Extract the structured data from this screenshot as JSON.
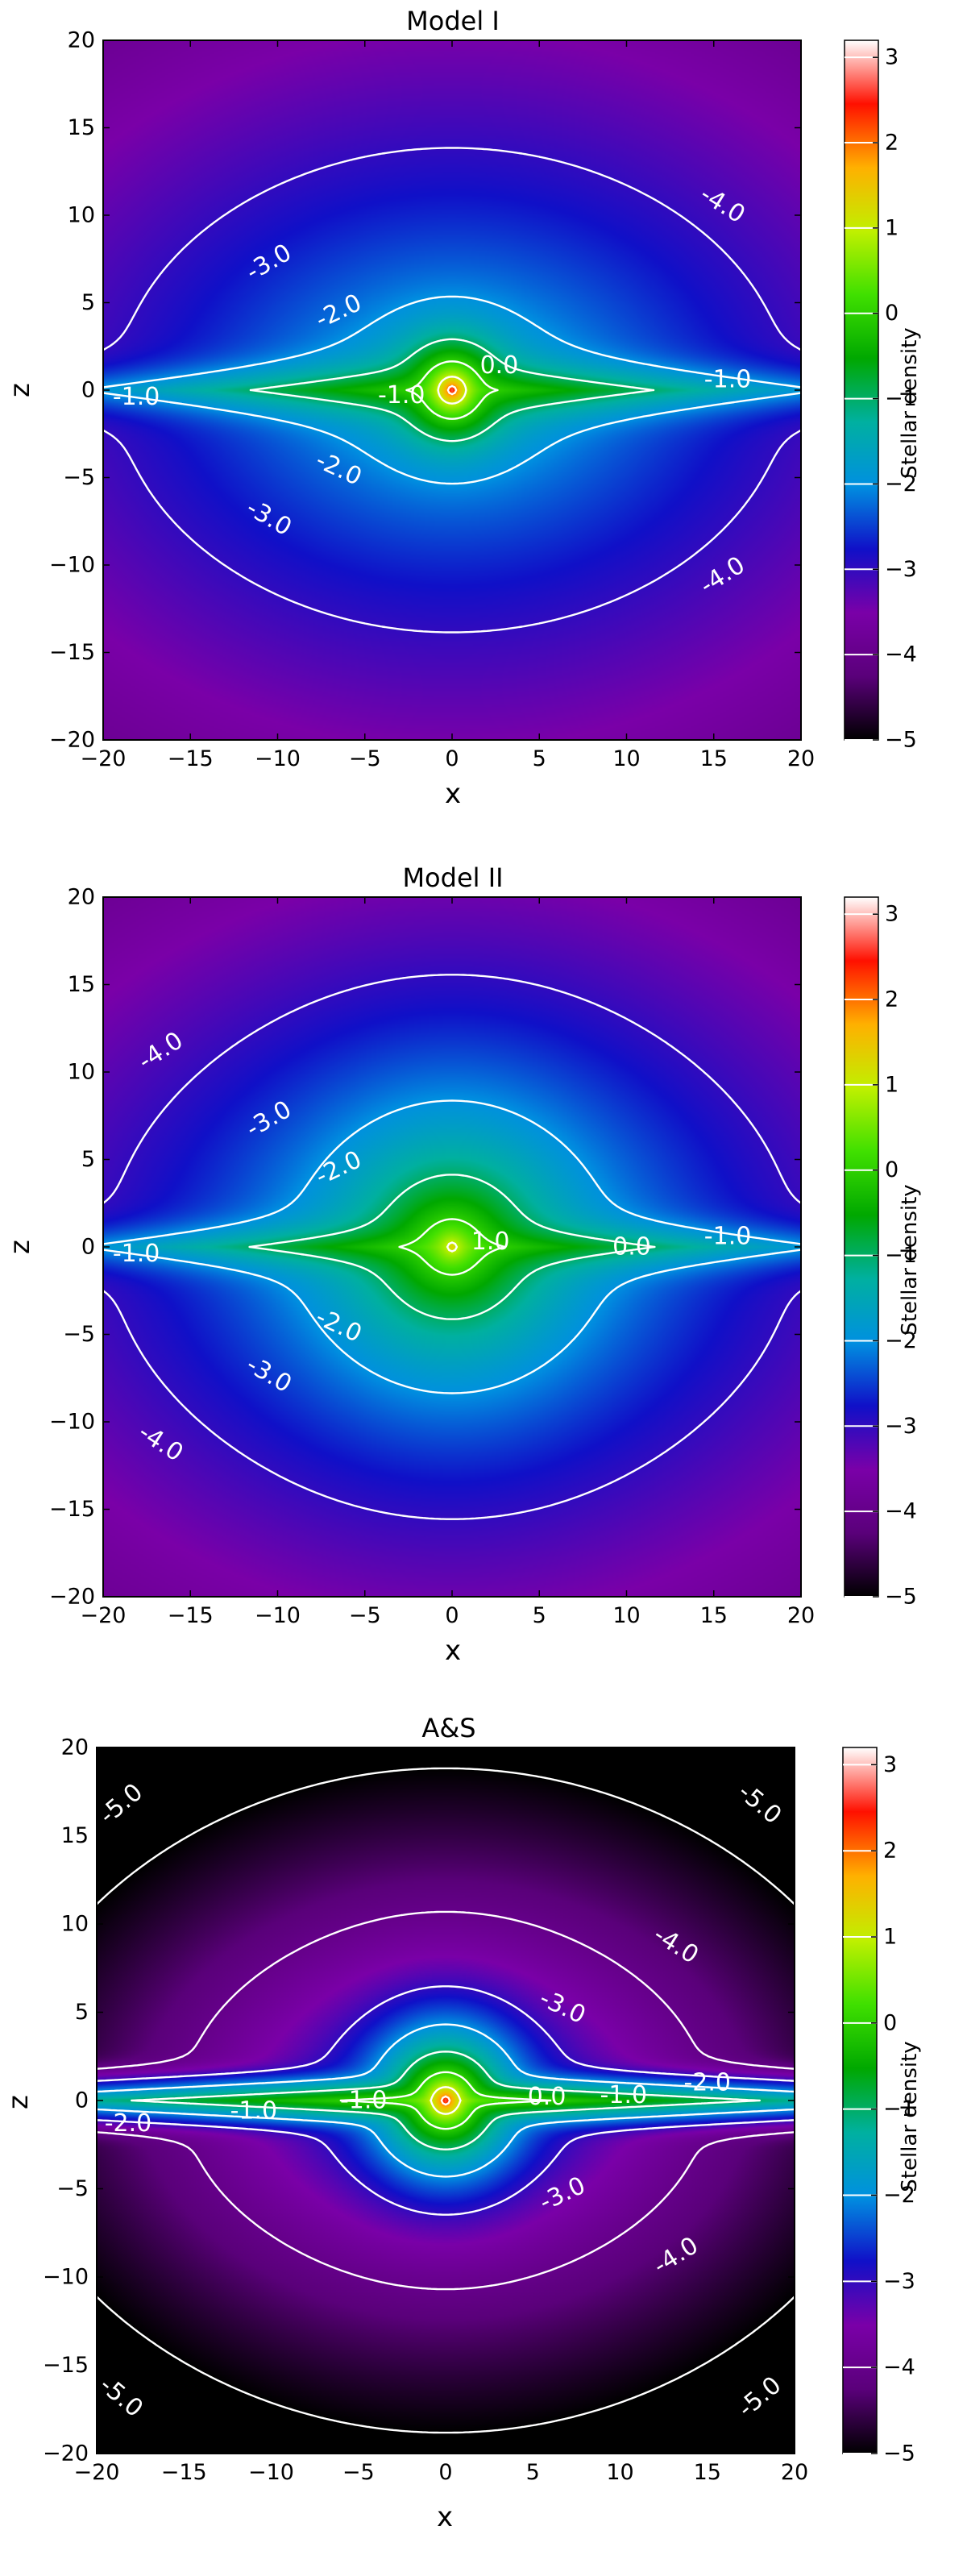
{
  "colors": {
    "contour": "#ffffff",
    "frame": "#000000",
    "colormap": [
      "#000000",
      "#5a007a",
      "#7a00a8",
      "#1010c8",
      "#0090e0",
      "#00b0a0",
      "#00a800",
      "#40e000",
      "#c0f000",
      "#ffb000",
      "#ff1000",
      "#ffffff"
    ]
  },
  "colorbar": {
    "label": "Stellar density",
    "range": [
      -5,
      3.2
    ],
    "ticks": [
      "3",
      "2",
      "1",
      "0",
      "−1",
      "−2",
      "−3",
      "−4",
      "−5"
    ],
    "tick_values": [
      3,
      2,
      1,
      0,
      -1,
      -2,
      -3,
      -4,
      -5
    ],
    "contour_levels": [
      -5,
      -4,
      -3,
      -2,
      -1,
      0,
      1,
      2,
      3
    ]
  },
  "chart_data": [
    {
      "type": "heatmap",
      "title": "Model I",
      "xlabel": "x",
      "ylabel": "z",
      "xlim": [
        -20,
        20
      ],
      "ylim": [
        -20,
        20
      ],
      "xticks": [
        "−20",
        "−15",
        "−10",
        "−5",
        "0",
        "5",
        "10",
        "15",
        "20"
      ],
      "yticks": [
        "20",
        "15",
        "10",
        "5",
        "0",
        "−5",
        "−10",
        "−15",
        "−20"
      ],
      "value_range": [
        -5,
        3.2
      ],
      "grid": false,
      "model": {
        "bulge": 3.2,
        "bulge_scale": 0.4,
        "disk": 0.2,
        "disk_rl": 9.5,
        "disk_h": 1.2,
        "halo": -1.2,
        "halo_scale": 9.5,
        "halo_q": 0.62,
        "halo_rl": 42,
        "outer_floor": -5
      },
      "contour_levels": [
        -4,
        -3,
        -2,
        -1,
        0,
        1,
        2
      ],
      "contour_labels": [
        {
          "text": "-4.0",
          "x": 15.5,
          "z": 10.6,
          "rot": 32
        },
        {
          "text": "-4.0",
          "x": 15.5,
          "z": -10.6,
          "rot": -32
        },
        {
          "text": "-3.0",
          "x": -10.5,
          "z": 7.3,
          "rot": -30
        },
        {
          "text": "-3.0",
          "x": -10.5,
          "z": -7.3,
          "rot": 30
        },
        {
          "text": "-2.0",
          "x": -6.5,
          "z": 4.5,
          "rot": -25
        },
        {
          "text": "-2.0",
          "x": -6.5,
          "z": -4.5,
          "rot": 25
        },
        {
          "text": "-1.0",
          "x": -18.1,
          "z": -0.4,
          "rot": 0
        },
        {
          "text": "-1.0",
          "x": 15.8,
          "z": 0.6,
          "rot": 0
        },
        {
          "text": "-1.0",
          "x": -2.9,
          "z": -0.3,
          "rot": 0
        },
        {
          "text": "0.0",
          "x": 2.7,
          "z": 1.4,
          "rot": 0
        }
      ]
    },
    {
      "type": "heatmap",
      "title": "Model II",
      "xlabel": "x",
      "ylabel": "z",
      "xlim": [
        -20,
        20
      ],
      "ylim": [
        -20,
        20
      ],
      "xticks": [
        "−20",
        "−15",
        "−10",
        "−5",
        "0",
        "5",
        "10",
        "15",
        "20"
      ],
      "yticks": [
        "20",
        "15",
        "10",
        "5",
        "0",
        "−5",
        "−10",
        "−15",
        "−20"
      ],
      "value_range": [
        -5,
        3.2
      ],
      "grid": false,
      "model": {
        "bulge": 1.6,
        "bulge_scale": 1.5,
        "disk": 0.2,
        "disk_rl": 9.5,
        "disk_h": 1.2,
        "halo": -1.2,
        "halo_scale": 9.5,
        "halo_q": 0.62,
        "halo_rl": 42,
        "outer_floor": -5
      },
      "contour_levels": [
        -4,
        -3,
        -2,
        -1,
        0,
        1
      ],
      "contour_labels": [
        {
          "text": "-4.0",
          "x": -16.7,
          "z": 11.2,
          "rot": -33
        },
        {
          "text": "-4.0",
          "x": -16.7,
          "z": -11.2,
          "rot": 33
        },
        {
          "text": "-3.0",
          "x": -10.5,
          "z": 7.3,
          "rot": -30
        },
        {
          "text": "-3.0",
          "x": -10.5,
          "z": -7.3,
          "rot": 30
        },
        {
          "text": "-2.0",
          "x": -6.5,
          "z": 4.5,
          "rot": -25
        },
        {
          "text": "-2.0",
          "x": -6.5,
          "z": -4.5,
          "rot": 25
        },
        {
          "text": "-1.0",
          "x": -18.1,
          "z": -0.4,
          "rot": 0
        },
        {
          "text": "-1.0",
          "x": 15.8,
          "z": 0.6,
          "rot": 0
        },
        {
          "text": "1.0",
          "x": 2.2,
          "z": 0.3,
          "rot": 0
        },
        {
          "text": "0.0",
          "x": 10.3,
          "z": 0,
          "rot": 0
        }
      ]
    },
    {
      "type": "heatmap",
      "title": "A&S",
      "xlabel": "x",
      "ylabel": "z",
      "xlim": [
        -20,
        20
      ],
      "ylim": [
        -20,
        20
      ],
      "xticks": [
        "−20",
        "−15",
        "−10",
        "−5",
        "0",
        "5",
        "10",
        "15",
        "20"
      ],
      "yticks": [
        "20",
        "15",
        "10",
        "5",
        "0",
        "−5",
        "−10",
        "−15",
        "−20"
      ],
      "value_range": [
        -5,
        3.2
      ],
      "grid": false,
      "model": {
        "bulge": 3.2,
        "bulge_scale": 0.4,
        "disk": 0.5,
        "disk_rl": 12,
        "disk_h": 0.6,
        "halo": -1.6,
        "halo_scale": 5,
        "halo_q": 0.55,
        "halo_rl": 21,
        "outer_floor": -6
      },
      "contour_levels": [
        -5,
        -4,
        -3,
        -2,
        -1,
        0,
        1,
        2
      ],
      "contour_labels": [
        {
          "text": "-5.0",
          "x": -18.6,
          "z": 16.8,
          "rot": -40
        },
        {
          "text": "-5.0",
          "x": 18.0,
          "z": 16.8,
          "rot": 40
        },
        {
          "text": "-5.0",
          "x": -18.6,
          "z": -16.8,
          "rot": 40
        },
        {
          "text": "-5.0",
          "x": 18.0,
          "z": -16.8,
          "rot": -40
        },
        {
          "text": "-4.0",
          "x": 13.2,
          "z": 8.8,
          "rot": 32
        },
        {
          "text": "-4.0",
          "x": 13.2,
          "z": -8.8,
          "rot": -32
        },
        {
          "text": "-3.0",
          "x": 6.7,
          "z": 5.3,
          "rot": 25
        },
        {
          "text": "-3.0",
          "x": 6.7,
          "z": -5.3,
          "rot": -25
        },
        {
          "text": "-2.0",
          "x": 15.0,
          "z": 1.0,
          "rot": 0
        },
        {
          "text": "-2.0",
          "x": -18.2,
          "z": -1.3,
          "rot": 0
        },
        {
          "text": "-1.0",
          "x": 10.2,
          "z": 0.3,
          "rot": 0
        },
        {
          "text": "-1.0",
          "x": -11.0,
          "z": -0.6,
          "rot": 0
        },
        {
          "text": "-1.0",
          "x": -4.7,
          "z": 0.0,
          "rot": 0
        },
        {
          "text": "0.0",
          "x": 5.8,
          "z": 0.2,
          "rot": 0
        }
      ]
    }
  ]
}
